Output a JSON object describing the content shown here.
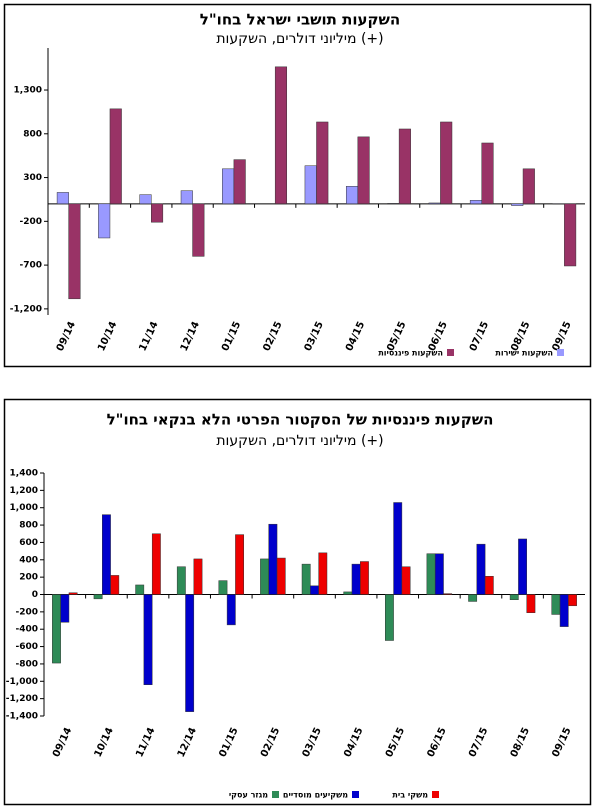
{
  "chart_data": [
    {
      "type": "bar",
      "title": "השקעות תושבי ישראל בחו\"ל",
      "subtitle": "מיליוני דולרים, השקעות (+)",
      "categories": [
        "09/14",
        "10/14",
        "11/14",
        "12/14",
        "01/15",
        "02/15",
        "03/15",
        "04/15",
        "05/15",
        "06/15",
        "07/15",
        "08/15",
        "09/15"
      ],
      "series": [
        {
          "name": "השקעות ישירות",
          "color": "#9999ff",
          "values": [
            130,
            -390,
            105,
            150,
            400,
            0,
            435,
            200,
            5,
            10,
            40,
            -20,
            -5
          ]
        },
        {
          "name": "השקעות פיננסיות",
          "color": "#993366",
          "values": [
            -1085,
            1085,
            -210,
            -600,
            505,
            1565,
            935,
            765,
            855,
            935,
            695,
            400,
            -710
          ]
        }
      ],
      "ylim": [
        -1270,
        1780
      ],
      "yticks": [
        {
          "value": -1200,
          "label": "-1,200"
        },
        -700,
        -200,
        300,
        800,
        {
          "value": 1300,
          "label": "1,300"
        }
      ]
    },
    {
      "type": "bar",
      "title": "השקעות פיננסיות של הסקטור הפרטי הלא בנקאי בחו\"ל",
      "subtitle": "מיליוני דולרים, השקעות (+)",
      "categories": [
        "09/14",
        "10/14",
        "11/14",
        "12/14",
        "01/15",
        "02/15",
        "03/15",
        "04/15",
        "05/15",
        "06/15",
        "07/15",
        "08/15",
        "09/15"
      ],
      "series": [
        {
          "name": "מגזר עסקי",
          "color": "#2e8b57",
          "values": [
            -790,
            -50,
            110,
            320,
            160,
            410,
            350,
            30,
            -530,
            470,
            -80,
            -60,
            -230
          ]
        },
        {
          "name": "משקיעים מוסדיים",
          "color": "#0000cc",
          "values": [
            -320,
            920,
            -1040,
            -1350,
            -350,
            810,
            100,
            350,
            1060,
            470,
            580,
            640,
            -370
          ]
        },
        {
          "name": "משקי בית",
          "color": "#ee0000",
          "values": [
            20,
            220,
            700,
            410,
            690,
            420,
            480,
            380,
            320,
            10,
            210,
            -210,
            -130
          ]
        }
      ],
      "ylim": [
        -1400,
        1400
      ],
      "yticks": [
        {
          "value": -1400,
          "label": "-1,400"
        },
        {
          "value": -1200,
          "label": "-1,200"
        },
        {
          "value": -1000,
          "label": "-1,000"
        },
        -800,
        -600,
        -400,
        -200,
        0,
        200,
        400,
        600,
        800,
        {
          "value": 1000,
          "label": "1,000"
        },
        {
          "value": 1200,
          "label": "1,200"
        },
        {
          "value": 1400,
          "label": "1,400"
        }
      ]
    }
  ]
}
